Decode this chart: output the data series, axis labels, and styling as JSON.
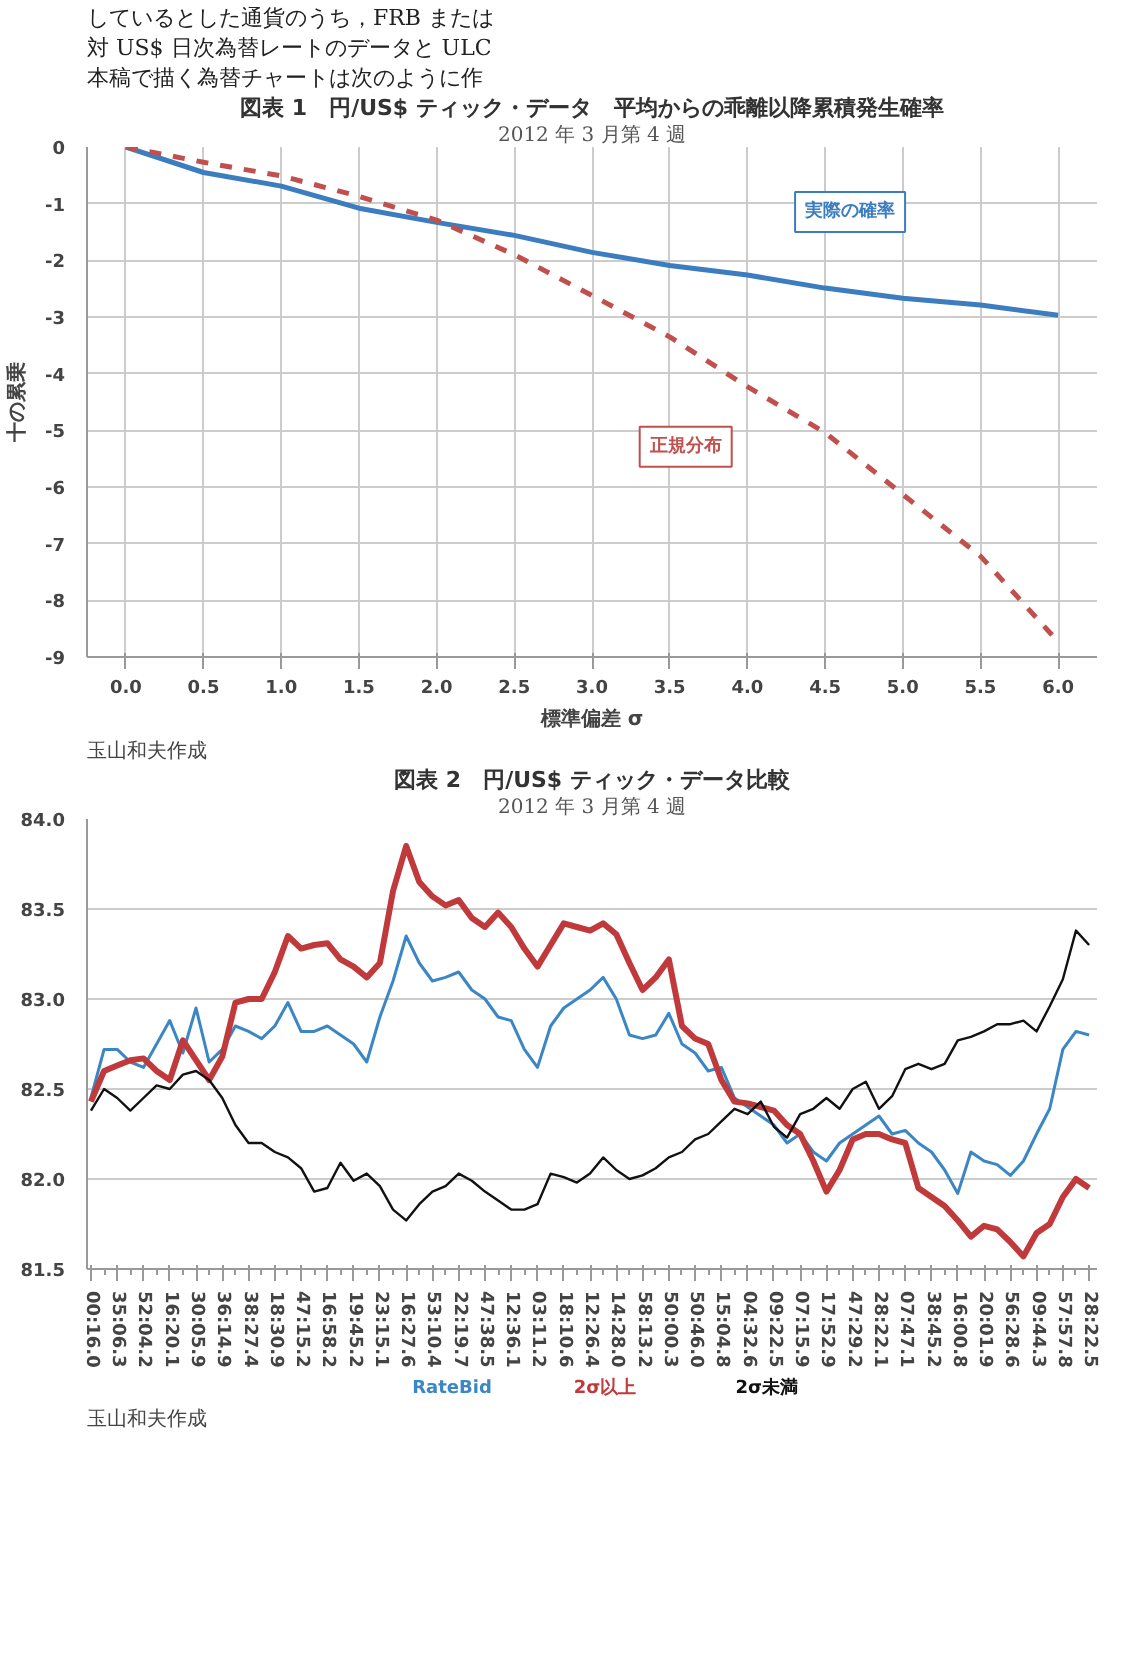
{
  "chart_data": [
    {
      "type": "line",
      "title": "図表 1　円/US$ ティック・データ　平均からの乖離以降累積発生確率",
      "subtitle": "2012 年 3 月第 4 週",
      "xlabel": "標準偏差 σ",
      "ylabel": "十の累乗",
      "annotations": [
        "しているとした通貨のうち，FRB または",
        "対 US$ 日次為替レートのデータと ULC",
        "本稿で描く為替チャートは次のように作",
        "玉山和夫作成"
      ],
      "x": [
        0,
        0.5,
        1.0,
        1.5,
        2.0,
        2.5,
        3.0,
        3.5,
        4.0,
        4.5,
        5.0,
        5.5,
        6.0
      ],
      "series": [
        {
          "name": "実際の確率",
          "color": "#3c7dbf",
          "line_style": "solid",
          "values": [
            0,
            -0.45,
            -0.69,
            -1.08,
            -1.33,
            -1.56,
            -1.86,
            -2.09,
            -2.26,
            -2.49,
            -2.67,
            -2.79,
            -2.97
          ]
        },
        {
          "name": "正規分布",
          "color": "#c0504d",
          "line_style": "dashed",
          "values": [
            0,
            -0.27,
            -0.51,
            -0.87,
            -1.29,
            -1.9,
            -2.62,
            -3.35,
            -4.23,
            -5.04,
            -6.13,
            -7.22,
            -8.73
          ]
        }
      ],
      "xlim": [
        -0.25,
        6.25
      ],
      "ylim": [
        -9,
        0
      ],
      "xticks": [
        {
          "value": 0,
          "label": "0.0"
        },
        {
          "value": 0.5,
          "label": "0.5"
        },
        {
          "value": 1,
          "label": "1.0"
        },
        {
          "value": 1.5,
          "label": "1.5"
        },
        {
          "value": 2,
          "label": "2.0"
        },
        {
          "value": 2.5,
          "label": "2.5"
        },
        {
          "value": 3,
          "label": "3.0"
        },
        {
          "value": 3.5,
          "label": "3.5"
        },
        {
          "value": 4,
          "label": "4.0"
        },
        {
          "value": 4.5,
          "label": "4.5"
        },
        {
          "value": 5,
          "label": "5.0"
        },
        {
          "value": 5.5,
          "label": "5.5"
        },
        {
          "value": 6,
          "label": "6.0"
        }
      ],
      "yticks": [
        0,
        -1,
        -2,
        -3,
        -4,
        -5,
        -6,
        -7,
        -8,
        -9
      ],
      "grid": true,
      "legend": false
    },
    {
      "type": "line",
      "title": "図表 2　円/US$ ティック・データ比較",
      "subtitle": "2012 年 3 月第 4 週",
      "annotations": [
        "玉山和夫作成"
      ],
      "categories": [
        "00:16.0",
        null,
        "35:06.3",
        null,
        "52:04.2",
        null,
        "16:20.1",
        null,
        "30:05.9",
        null,
        "36:14.9",
        null,
        "38:27.4",
        null,
        "18:30.9",
        null,
        "47:15.2",
        null,
        "16:58.2",
        null,
        "19:45.2",
        null,
        "23:15.1",
        null,
        "16:27.6",
        null,
        "53:10.4",
        null,
        "22:19.7",
        null,
        "47:38.5",
        null,
        "12:36.1",
        null,
        "03:11.2",
        null,
        "18:10.6",
        null,
        "12:26.4",
        null,
        "14:28.0",
        null,
        "58:13.2",
        null,
        "50:00.3",
        null,
        "50:46.0",
        null,
        "15:04.8",
        null,
        "04:32.6",
        null,
        "09:22.5",
        null,
        "07:15.9",
        null,
        "17:52.9",
        null,
        "47:29.2",
        null,
        "28:22.1",
        null,
        "07:47.1",
        null,
        "38:45.2",
        null,
        "16:00.8",
        null,
        "20:01.9",
        null,
        "56:28.6",
        null,
        "09:44.3",
        null,
        "57:57.8",
        null,
        "28:22.5"
      ],
      "series": [
        {
          "name": "RateBid",
          "color": "#3b86c4",
          "values": [
            82.45,
            82.72,
            82.72,
            82.65,
            82.62,
            82.75,
            82.88,
            82.7,
            82.95,
            82.65,
            82.72,
            82.85,
            82.82,
            82.78,
            82.85,
            82.98,
            82.82,
            82.82,
            82.85,
            82.8,
            82.75,
            82.65,
            82.9,
            83.1,
            83.35,
            83.2,
            83.1,
            83.12,
            83.15,
            83.05,
            83.0,
            82.9,
            82.88,
            82.72,
            82.62,
            82.85,
            82.95,
            83.0,
            83.05,
            83.12,
            83.0,
            82.8,
            82.78,
            82.8,
            82.92,
            82.75,
            82.7,
            82.6,
            82.62,
            82.45,
            82.4,
            82.35,
            82.3,
            82.2,
            82.25,
            82.15,
            82.1,
            82.2,
            82.25,
            82.3,
            82.35,
            82.25,
            82.27,
            82.2,
            82.15,
            82.05,
            81.92,
            82.15,
            82.1,
            82.08,
            82.02,
            82.1,
            82.25,
            82.39,
            82.72,
            82.82,
            82.8
          ]
        },
        {
          "name": "2σ以上",
          "color": "#c0393b",
          "values": [
            82.43,
            82.6,
            82.63,
            82.66,
            82.67,
            82.6,
            82.55,
            82.77,
            82.66,
            82.55,
            82.68,
            82.98,
            83.0,
            83.0,
            83.15,
            83.35,
            83.28,
            83.3,
            83.31,
            83.22,
            83.18,
            83.12,
            83.2,
            83.6,
            83.85,
            83.65,
            83.57,
            83.52,
            83.55,
            83.45,
            83.4,
            83.48,
            83.4,
            83.28,
            83.18,
            83.3,
            83.42,
            83.4,
            83.38,
            83.42,
            83.36,
            83.2,
            83.05,
            83.12,
            83.22,
            82.85,
            82.78,
            82.75,
            82.55,
            82.43,
            82.42,
            82.4,
            82.38,
            82.3,
            82.25,
            82.1,
            81.93,
            82.05,
            82.22,
            82.25,
            82.25,
            82.22,
            82.2,
            81.95,
            81.9,
            81.85,
            81.77,
            81.68,
            81.74,
            81.72,
            81.65,
            81.57,
            81.7,
            81.75,
            81.9,
            82.0,
            81.95
          ]
        },
        {
          "name": "2σ未満",
          "color": "#111111",
          "values": [
            82.38,
            82.5,
            82.45,
            82.38,
            82.45,
            82.52,
            82.5,
            82.58,
            82.6,
            82.55,
            82.45,
            82.3,
            82.2,
            82.2,
            82.15,
            82.12,
            82.06,
            81.93,
            81.95,
            82.09,
            81.99,
            82.03,
            81.96,
            81.83,
            81.77,
            81.86,
            81.93,
            81.96,
            82.03,
            81.99,
            81.93,
            81.88,
            81.83,
            81.83,
            81.86,
            82.03,
            82.01,
            81.98,
            82.03,
            82.12,
            82.05,
            82.0,
            82.02,
            82.06,
            82.12,
            82.15,
            82.22,
            82.25,
            82.32,
            82.39,
            82.36,
            82.43,
            82.29,
            82.23,
            82.36,
            82.39,
            82.45,
            82.39,
            82.5,
            82.54,
            82.39,
            82.46,
            82.61,
            82.64,
            82.61,
            82.64,
            82.77,
            82.79,
            82.82,
            82.86,
            82.86,
            82.88,
            82.82,
            82.96,
            83.11,
            83.38,
            83.3
          ]
        }
      ],
      "ylim": [
        81.5,
        84.0
      ],
      "yticks": [
        {
          "value": 81.5,
          "label": "81.5"
        },
        {
          "value": 82,
          "label": "82.0"
        },
        {
          "value": 82.5,
          "label": "82.5"
        },
        {
          "value": 83,
          "label": "83.0"
        },
        {
          "value": 83.5,
          "label": "83.5"
        },
        {
          "value": 84,
          "label": "84.0"
        }
      ],
      "grid": "y",
      "legend": "bottom"
    }
  ]
}
